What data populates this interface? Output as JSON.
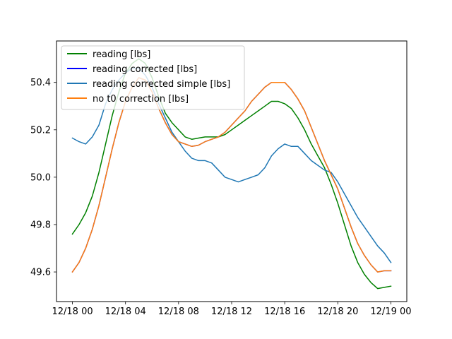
{
  "chart_data": {
    "type": "line",
    "title": "",
    "xlabel": "",
    "ylabel": "",
    "x_unit": "hours since 12/18 00:00",
    "xlim": [
      -1.2,
      25.2
    ],
    "ylim": [
      49.475,
      50.575
    ],
    "xticks": [
      {
        "value": 0,
        "label": "12/18 00"
      },
      {
        "value": 4,
        "label": "12/18 04"
      },
      {
        "value": 8,
        "label": "12/18 08"
      },
      {
        "value": 12,
        "label": "12/18 12"
      },
      {
        "value": 16,
        "label": "12/18 16"
      },
      {
        "value": 20,
        "label": "12/18 20"
      },
      {
        "value": 24,
        "label": "12/19 00"
      }
    ],
    "yticks": [
      {
        "value": 49.6,
        "label": "49.6"
      },
      {
        "value": 49.8,
        "label": "49.8"
      },
      {
        "value": 50.0,
        "label": "50.0"
      },
      {
        "value": 50.2,
        "label": "50.2"
      },
      {
        "value": 50.4,
        "label": "50.4"
      }
    ],
    "legend": {
      "position": "top-left"
    },
    "grid": false,
    "series": [
      {
        "name": "reading [lbs]",
        "color": "#008000",
        "x": [
          0,
          0.5,
          1,
          1.5,
          2,
          2.5,
          3,
          3.5,
          4,
          4.5,
          5,
          5.5,
          6,
          6.5,
          7,
          7.5,
          8,
          8.5,
          9,
          9.5,
          10,
          10.5,
          11,
          11.5,
          12,
          12.5,
          13,
          13.5,
          14,
          14.5,
          15,
          15.5,
          16,
          16.5,
          17,
          17.5,
          18,
          18.5,
          19,
          19.5,
          20,
          20.5,
          21,
          21.5,
          22,
          22.5,
          23,
          23.5,
          24
        ],
        "y": [
          49.76,
          49.8,
          49.85,
          49.92,
          50.02,
          50.14,
          50.26,
          50.36,
          50.44,
          50.48,
          50.5,
          50.48,
          50.42,
          50.34,
          50.27,
          50.23,
          50.2,
          50.17,
          50.16,
          50.165,
          50.17,
          50.17,
          50.17,
          50.18,
          50.2,
          50.22,
          50.24,
          50.26,
          50.28,
          50.3,
          50.32,
          50.32,
          50.31,
          50.29,
          50.25,
          50.2,
          50.14,
          50.09,
          50.04,
          49.97,
          49.89,
          49.8,
          49.71,
          49.64,
          49.59,
          49.555,
          49.53,
          49.535,
          49.54
        ]
      },
      {
        "name": "reading corrected [lbs]",
        "color": "#0000ff",
        "x": [
          0,
          0.5,
          1,
          1.5,
          2,
          2.5,
          3,
          3.5,
          4,
          4.5,
          5,
          5.5,
          6,
          6.5,
          7,
          7.5,
          8,
          8.5,
          9,
          9.5,
          10,
          10.5,
          11,
          11.5,
          12,
          12.5,
          13,
          13.5,
          14,
          14.5,
          15,
          15.5,
          16,
          16.5,
          17,
          17.5,
          18,
          18.5,
          19,
          19.5,
          20,
          20.5,
          21,
          21.5,
          22,
          22.5,
          23,
          23.5,
          24
        ],
        "y": [
          49.6,
          49.64,
          49.7,
          49.78,
          49.88,
          50.0,
          50.12,
          50.23,
          50.32,
          50.38,
          50.42,
          50.41,
          50.36,
          50.29,
          50.23,
          50.18,
          50.15,
          50.14,
          50.13,
          50.135,
          50.15,
          50.16,
          50.17,
          50.19,
          50.22,
          50.25,
          50.28,
          50.32,
          50.35,
          50.38,
          50.4,
          50.4,
          50.4,
          50.37,
          50.33,
          50.28,
          50.21,
          50.14,
          50.07,
          50.01,
          49.95,
          49.87,
          49.79,
          49.72,
          49.67,
          49.63,
          49.6,
          49.605,
          49.605
        ]
      },
      {
        "name": "reading corrected simple [lbs]",
        "color": "#1f77b4",
        "x": [
          0,
          0.5,
          1,
          1.5,
          2,
          2.5,
          3,
          3.5,
          4,
          4.5,
          5,
          5.5,
          6,
          6.5,
          7,
          7.5,
          8,
          8.5,
          9,
          9.5,
          10,
          10.5,
          11,
          11.5,
          12,
          12.5,
          13,
          13.5,
          14,
          14.5,
          15,
          15.5,
          16,
          16.5,
          17,
          17.5,
          18,
          18.5,
          19,
          19.5,
          20,
          20.5,
          21,
          21.5,
          22,
          22.5,
          23,
          23.5,
          24
        ],
        "y": [
          50.165,
          50.15,
          50.14,
          50.17,
          50.22,
          50.31,
          50.37,
          50.41,
          50.44,
          50.46,
          50.46,
          50.43,
          50.38,
          50.31,
          50.25,
          50.19,
          50.15,
          50.11,
          50.08,
          50.07,
          50.07,
          50.06,
          50.03,
          50.0,
          49.99,
          49.98,
          49.99,
          50.0,
          50.01,
          50.04,
          50.09,
          50.12,
          50.14,
          50.13,
          50.13,
          50.1,
          50.07,
          50.05,
          50.03,
          50.02,
          49.98,
          49.93,
          49.88,
          49.83,
          49.79,
          49.75,
          49.71,
          49.68,
          49.64
        ]
      },
      {
        "name": "no t0 correction [lbs]",
        "color": "#ff7f0e",
        "x": [
          0,
          0.5,
          1,
          1.5,
          2,
          2.5,
          3,
          3.5,
          4,
          4.5,
          5,
          5.5,
          6,
          6.5,
          7,
          7.5,
          8,
          8.5,
          9,
          9.5,
          10,
          10.5,
          11,
          11.5,
          12,
          12.5,
          13,
          13.5,
          14,
          14.5,
          15,
          15.5,
          16,
          16.5,
          17,
          17.5,
          18,
          18.5,
          19,
          19.5,
          20,
          20.5,
          21,
          21.5,
          22,
          22.5,
          23,
          23.5,
          24
        ],
        "y": [
          49.6,
          49.64,
          49.7,
          49.78,
          49.88,
          50.0,
          50.12,
          50.23,
          50.32,
          50.38,
          50.42,
          50.41,
          50.36,
          50.29,
          50.23,
          50.18,
          50.15,
          50.14,
          50.13,
          50.135,
          50.15,
          50.16,
          50.17,
          50.19,
          50.22,
          50.25,
          50.28,
          50.32,
          50.35,
          50.38,
          50.4,
          50.4,
          50.4,
          50.37,
          50.33,
          50.28,
          50.21,
          50.14,
          50.07,
          50.01,
          49.95,
          49.87,
          49.79,
          49.72,
          49.67,
          49.63,
          49.6,
          49.605,
          49.605
        ]
      }
    ]
  }
}
